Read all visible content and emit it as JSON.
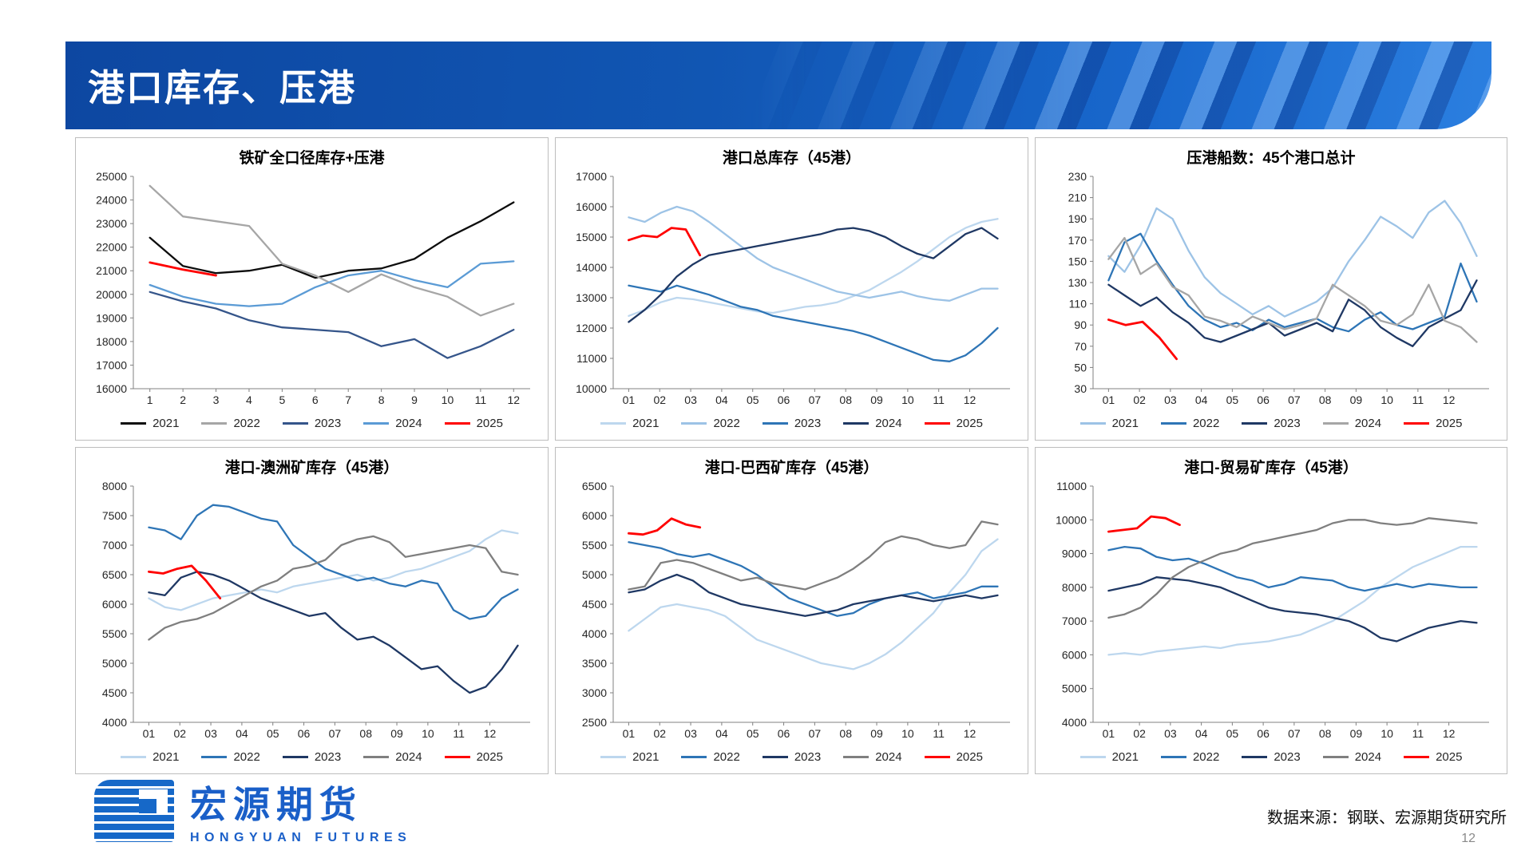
{
  "slide": {
    "title": "港口库存、压港",
    "source_note": "数据来源：钢联、宏源期货研究所",
    "page_number": "12",
    "logo_cn": "宏源期货",
    "logo_en": "HONGYUAN FUTURES",
    "accent_color": "#1156b3"
  },
  "chart_data": [
    {
      "type": "line",
      "title": "铁矿全口径库存+压港",
      "xlabel": "",
      "ylabel": "",
      "ylim": [
        16000,
        25000
      ],
      "ystep": 1000,
      "xdomain": [
        0.5,
        12.5
      ],
      "grid": false,
      "legend_position": "bottom",
      "x_ticks": [
        "1",
        "2",
        "3",
        "4",
        "5",
        "6",
        "7",
        "8",
        "9",
        "10",
        "11",
        "12"
      ],
      "series": [
        {
          "name": "2021",
          "color": "#0d0d0d",
          "x_range": [
            1,
            12
          ],
          "values": [
            22400,
            21200,
            20900,
            21000,
            21250,
            20700,
            21000,
            21100,
            21500,
            22400,
            23100,
            23900
          ]
        },
        {
          "name": "2022",
          "color": "#a6a6a6",
          "x_range": [
            1,
            12
          ],
          "values": [
            24600,
            23300,
            23100,
            22900,
            21300,
            20800,
            20100,
            20850,
            20300,
            19900,
            19100,
            19600
          ]
        },
        {
          "name": "2023",
          "color": "#35558a",
          "x_range": [
            1,
            12
          ],
          "values": [
            20100,
            19700,
            19400,
            18900,
            18600,
            18500,
            18400,
            17800,
            18100,
            17300,
            17800,
            18500
          ]
        },
        {
          "name": "2024",
          "color": "#5b9bd5",
          "x_range": [
            1,
            12
          ],
          "values": [
            20400,
            19900,
            19600,
            19500,
            19600,
            20300,
            20800,
            21000,
            20600,
            20300,
            21300,
            21400
          ]
        },
        {
          "name": "2025",
          "color": "#ff0000",
          "x_range": [
            1,
            3
          ],
          "values": [
            21350,
            21050,
            20800
          ]
        }
      ]
    },
    {
      "type": "line",
      "title": "港口总库存（45港）",
      "xlabel": "",
      "ylabel": "",
      "ylim": [
        10000,
        17000
      ],
      "ystep": 1000,
      "xdomain": [
        0.5,
        13.3
      ],
      "grid": false,
      "legend_position": "bottom",
      "x_ticks": [
        "01",
        "02",
        "03",
        "04",
        "05",
        "06",
        "07",
        "08",
        "09",
        "10",
        "11",
        "12"
      ],
      "series": [
        {
          "name": "2021",
          "color": "#bdd7ee",
          "x_range": [
            1,
            12.9
          ],
          "values": [
            12400,
            12600,
            12850,
            13000,
            12950,
            12850,
            12750,
            12650,
            12550,
            12500,
            12600,
            12700,
            12750,
            12850,
            13050,
            13250,
            13550,
            13850,
            14200,
            14600,
            15000,
            15300,
            15500,
            15600
          ]
        },
        {
          "name": "2022",
          "color": "#9dc3e6",
          "x_range": [
            1,
            12.9
          ],
          "values": [
            15650,
            15500,
            15800,
            16000,
            15850,
            15500,
            15100,
            14700,
            14300,
            14000,
            13800,
            13600,
            13400,
            13200,
            13100,
            13000,
            13100,
            13200,
            13050,
            12950,
            12900,
            13100,
            13300,
            13300
          ]
        },
        {
          "name": "2023",
          "color": "#2e75b6",
          "x_range": [
            1,
            12.9
          ],
          "values": [
            13400,
            13300,
            13200,
            13400,
            13250,
            13100,
            12900,
            12700,
            12600,
            12400,
            12300,
            12200,
            12100,
            12000,
            11900,
            11750,
            11550,
            11350,
            11150,
            10950,
            10900,
            11100,
            11500,
            12000
          ]
        },
        {
          "name": "2024",
          "color": "#1f3864",
          "x_range": [
            1,
            12.9
          ],
          "values": [
            12200,
            12600,
            13100,
            13700,
            14100,
            14400,
            14500,
            14600,
            14700,
            14800,
            14900,
            15000,
            15100,
            15250,
            15300,
            15200,
            15000,
            14700,
            14450,
            14300,
            14700,
            15100,
            15300,
            14950
          ]
        },
        {
          "name": "2025",
          "color": "#ff0000",
          "x_range": [
            1,
            3.3
          ],
          "values": [
            14900,
            15050,
            15000,
            15300,
            15250,
            14400
          ]
        }
      ]
    },
    {
      "type": "line",
      "title": "压港船数：45个港口总计",
      "xlabel": "",
      "ylabel": "",
      "ylim": [
        30,
        230
      ],
      "ystep": 20,
      "xdomain": [
        0.5,
        13.3
      ],
      "grid": false,
      "legend_position": "bottom",
      "x_ticks": [
        "01",
        "02",
        "03",
        "04",
        "05",
        "06",
        "07",
        "08",
        "09",
        "10",
        "11",
        "12"
      ],
      "series": [
        {
          "name": "2021",
          "color": "#9dc3e6",
          "x_range": [
            1,
            12.9
          ],
          "values": [
            155,
            140,
            165,
            200,
            190,
            160,
            135,
            120,
            110,
            100,
            108,
            98,
            105,
            112,
            125,
            150,
            170,
            192,
            183,
            172,
            196,
            207,
            186,
            155
          ]
        },
        {
          "name": "2022",
          "color": "#2e75b6",
          "x_range": [
            1,
            12.9
          ],
          "values": [
            132,
            168,
            176,
            150,
            128,
            108,
            95,
            88,
            92,
            85,
            95,
            88,
            92,
            96,
            88,
            84,
            95,
            102,
            90,
            86,
            92,
            98,
            148,
            112
          ]
        },
        {
          "name": "2023",
          "color": "#1f3864",
          "x_range": [
            1,
            12.9
          ],
          "values": [
            128,
            118,
            108,
            116,
            102,
            92,
            78,
            74,
            80,
            86,
            92,
            80,
            86,
            92,
            84,
            114,
            104,
            88,
            78,
            70,
            88,
            96,
            104,
            132
          ]
        },
        {
          "name": "2024",
          "color": "#a6a6a6",
          "x_range": [
            1,
            12.9
          ],
          "values": [
            152,
            172,
            138,
            148,
            126,
            118,
            98,
            94,
            88,
            98,
            92,
            86,
            90,
            96,
            128,
            118,
            108,
            94,
            90,
            100,
            128,
            94,
            88,
            74
          ]
        },
        {
          "name": "2025",
          "color": "#ff0000",
          "x_range": [
            1,
            3.2
          ],
          "values": [
            95,
            90,
            93,
            78,
            58
          ]
        }
      ]
    },
    {
      "type": "line",
      "title": "港口-澳洲矿库存（45港）",
      "xlabel": "",
      "ylabel": "",
      "ylim": [
        4000,
        8000
      ],
      "ystep": 500,
      "xdomain": [
        0.5,
        13.3
      ],
      "grid": false,
      "legend_position": "bottom",
      "x_ticks": [
        "01",
        "02",
        "03",
        "04",
        "05",
        "06",
        "07",
        "08",
        "09",
        "10",
        "11",
        "12"
      ],
      "series": [
        {
          "name": "2021",
          "color": "#bdd7ee",
          "x_range": [
            1,
            12.9
          ],
          "values": [
            6100,
            5950,
            5900,
            6000,
            6100,
            6150,
            6200,
            6250,
            6200,
            6300,
            6350,
            6400,
            6450,
            6500,
            6400,
            6450,
            6550,
            6600,
            6700,
            6800,
            6900,
            7100,
            7250,
            7200
          ]
        },
        {
          "name": "2022",
          "color": "#2e75b6",
          "x_range": [
            1,
            12.9
          ],
          "values": [
            7300,
            7250,
            7100,
            7500,
            7680,
            7650,
            7550,
            7450,
            7400,
            7000,
            6800,
            6600,
            6500,
            6400,
            6450,
            6350,
            6300,
            6400,
            6350,
            5900,
            5750,
            5800,
            6100,
            6250
          ]
        },
        {
          "name": "2023",
          "color": "#1f3864",
          "x_range": [
            1,
            12.9
          ],
          "values": [
            6200,
            6150,
            6450,
            6550,
            6500,
            6400,
            6250,
            6100,
            6000,
            5900,
            5800,
            5850,
            5600,
            5400,
            5450,
            5300,
            5100,
            4900,
            4950,
            4700,
            4500,
            4600,
            4900,
            5300
          ]
        },
        {
          "name": "2024",
          "color": "#7f7f7f",
          "x_range": [
            1,
            12.9
          ],
          "values": [
            5400,
            5600,
            5700,
            5750,
            5850,
            6000,
            6150,
            6300,
            6400,
            6600,
            6650,
            6750,
            7000,
            7100,
            7150,
            7050,
            6800,
            6850,
            6900,
            6950,
            7000,
            6950,
            6550,
            6500
          ]
        },
        {
          "name": "2025",
          "color": "#ff0000",
          "x_range": [
            1,
            3.3
          ],
          "values": [
            6550,
            6520,
            6600,
            6650,
            6400,
            6100
          ]
        }
      ]
    },
    {
      "type": "line",
      "title": "港口-巴西矿库存（45港）",
      "xlabel": "",
      "ylabel": "",
      "ylim": [
        2500,
        6500
      ],
      "ystep": 500,
      "xdomain": [
        0.5,
        13.3
      ],
      "grid": false,
      "legend_position": "bottom",
      "x_ticks": [
        "01",
        "02",
        "03",
        "04",
        "05",
        "06",
        "07",
        "08",
        "09",
        "10",
        "11",
        "12"
      ],
      "series": [
        {
          "name": "2021",
          "color": "#bdd7ee",
          "x_range": [
            1,
            12.9
          ],
          "values": [
            4050,
            4250,
            4450,
            4500,
            4450,
            4400,
            4300,
            4100,
            3900,
            3800,
            3700,
            3600,
            3500,
            3450,
            3400,
            3500,
            3650,
            3850,
            4100,
            4350,
            4700,
            5000,
            5400,
            5600
          ]
        },
        {
          "name": "2022",
          "color": "#2e75b6",
          "x_range": [
            1,
            12.9
          ],
          "values": [
            5550,
            5500,
            5450,
            5350,
            5300,
            5350,
            5250,
            5150,
            5000,
            4800,
            4600,
            4500,
            4400,
            4300,
            4350,
            4500,
            4600,
            4650,
            4700,
            4600,
            4650,
            4700,
            4800,
            4800
          ]
        },
        {
          "name": "2023",
          "color": "#1f3864",
          "x_range": [
            1,
            12.9
          ],
          "values": [
            4700,
            4750,
            4900,
            5000,
            4900,
            4700,
            4600,
            4500,
            4450,
            4400,
            4350,
            4300,
            4350,
            4400,
            4500,
            4550,
            4600,
            4650,
            4600,
            4550,
            4600,
            4650,
            4600,
            4650
          ]
        },
        {
          "name": "2024",
          "color": "#7f7f7f",
          "x_range": [
            1,
            12.9
          ],
          "values": [
            4750,
            4800,
            5200,
            5250,
            5200,
            5100,
            5000,
            4900,
            4950,
            4850,
            4800,
            4750,
            4850,
            4950,
            5100,
            5300,
            5550,
            5650,
            5600,
            5500,
            5450,
            5500,
            5900,
            5850
          ]
        },
        {
          "name": "2025",
          "color": "#ff0000",
          "x_range": [
            1,
            3.3
          ],
          "values": [
            5700,
            5680,
            5750,
            5950,
            5850,
            5800
          ]
        }
      ]
    },
    {
      "type": "line",
      "title": "港口-贸易矿库存（45港）",
      "xlabel": "",
      "ylabel": "",
      "ylim": [
        4000,
        11000
      ],
      "ystep": 1000,
      "xdomain": [
        0.5,
        13.3
      ],
      "grid": false,
      "legend_position": "bottom",
      "x_ticks": [
        "01",
        "02",
        "03",
        "04",
        "05",
        "06",
        "07",
        "08",
        "09",
        "10",
        "11",
        "12"
      ],
      "series": [
        {
          "name": "2021",
          "color": "#bdd7ee",
          "x_range": [
            1,
            12.9
          ],
          "values": [
            6000,
            6050,
            6000,
            6100,
            6150,
            6200,
            6250,
            6200,
            6300,
            6350,
            6400,
            6500,
            6600,
            6800,
            7000,
            7300,
            7600,
            8000,
            8300,
            8600,
            8800,
            9000,
            9200,
            9200
          ]
        },
        {
          "name": "2022",
          "color": "#2e75b6",
          "x_range": [
            1,
            12.9
          ],
          "values": [
            9100,
            9200,
            9150,
            8900,
            8800,
            8850,
            8700,
            8500,
            8300,
            8200,
            8000,
            8100,
            8300,
            8250,
            8200,
            8000,
            7900,
            8000,
            8100,
            8000,
            8100,
            8050,
            8000,
            8000
          ]
        },
        {
          "name": "2023",
          "color": "#1f3864",
          "x_range": [
            1,
            12.9
          ],
          "values": [
            7900,
            8000,
            8100,
            8300,
            8250,
            8200,
            8100,
            8000,
            7800,
            7600,
            7400,
            7300,
            7250,
            7200,
            7100,
            7000,
            6800,
            6500,
            6400,
            6600,
            6800,
            6900,
            7000,
            6950
          ]
        },
        {
          "name": "2024",
          "color": "#7f7f7f",
          "x_range": [
            1,
            12.9
          ],
          "values": [
            7100,
            7200,
            7400,
            7800,
            8300,
            8600,
            8800,
            9000,
            9100,
            9300,
            9400,
            9500,
            9600,
            9700,
            9900,
            10000,
            10000,
            9900,
            9850,
            9900,
            10050,
            10000,
            9950,
            9900
          ]
        },
        {
          "name": "2025",
          "color": "#ff0000",
          "x_range": [
            1,
            3.3
          ],
          "values": [
            9650,
            9700,
            9750,
            10100,
            10050,
            9850
          ]
        }
      ]
    }
  ]
}
